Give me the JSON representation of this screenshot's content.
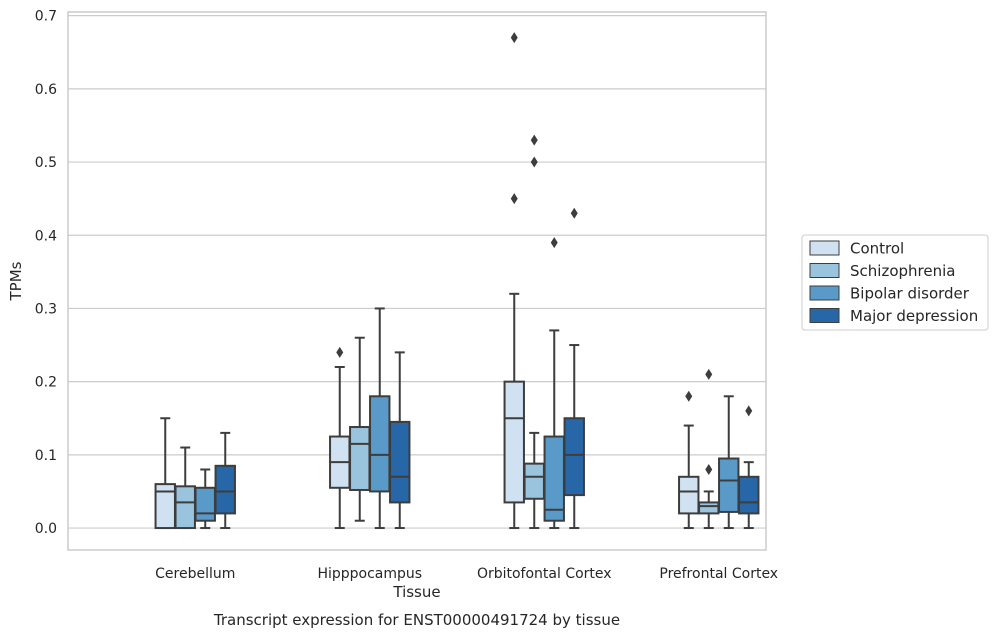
{
  "chart_data": {
    "type": "box",
    "title": "Transcript expression for ENST00000491724 by tissue",
    "xlabel": "Tissue",
    "ylabel": "TPMs",
    "ylim": [
      -0.03,
      0.705
    ],
    "yticks": [
      "0.0",
      "0.1",
      "0.2",
      "0.3",
      "0.4",
      "0.5",
      "0.6",
      "0.7"
    ],
    "categories": [
      "Cerebellum",
      "Hipppocampus",
      "Orbitofontal Cortex",
      "Prefrontal Cortex"
    ],
    "grid": "horizontal",
    "legend_position": "right",
    "series": [
      {
        "name": "Control",
        "color": "#d0e1f2",
        "boxes": [
          {
            "whisker_low": 0.0,
            "q1": 0.0,
            "median": 0.05,
            "q3": 0.06,
            "whisker_high": 0.15,
            "outliers": []
          },
          {
            "whisker_low": 0.0,
            "q1": 0.055,
            "median": 0.09,
            "q3": 0.125,
            "whisker_high": 0.22,
            "outliers": [
              0.24
            ]
          },
          {
            "whisker_low": 0.0,
            "q1": 0.035,
            "median": 0.15,
            "q3": 0.2,
            "whisker_high": 0.32,
            "outliers": [
              0.67,
              0.45
            ]
          },
          {
            "whisker_low": 0.0,
            "q1": 0.02,
            "median": 0.05,
            "q3": 0.07,
            "whisker_high": 0.14,
            "outliers": [
              0.18
            ]
          }
        ]
      },
      {
        "name": "Schizophrenia",
        "color": "#9ac3dd",
        "boxes": [
          {
            "whisker_low": 0.0,
            "q1": 0.0,
            "median": 0.035,
            "q3": 0.057,
            "whisker_high": 0.11,
            "outliers": []
          },
          {
            "whisker_low": 0.01,
            "q1": 0.052,
            "median": 0.115,
            "q3": 0.138,
            "whisker_high": 0.26,
            "outliers": []
          },
          {
            "whisker_low": 0.0,
            "q1": 0.04,
            "median": 0.07,
            "q3": 0.088,
            "whisker_high": 0.13,
            "outliers": [
              0.53,
              0.5
            ]
          },
          {
            "whisker_low": 0.0,
            "q1": 0.02,
            "median": 0.03,
            "q3": 0.035,
            "whisker_high": 0.05,
            "outliers": [
              0.08,
              0.21
            ]
          }
        ]
      },
      {
        "name": "Bipolar disorder",
        "color": "#5a9ac8",
        "boxes": [
          {
            "whisker_low": 0.0,
            "q1": 0.01,
            "median": 0.02,
            "q3": 0.055,
            "whisker_high": 0.08,
            "outliers": []
          },
          {
            "whisker_low": 0.0,
            "q1": 0.05,
            "median": 0.1,
            "q3": 0.18,
            "whisker_high": 0.3,
            "outliers": []
          },
          {
            "whisker_low": 0.0,
            "q1": 0.01,
            "median": 0.025,
            "q3": 0.125,
            "whisker_high": 0.27,
            "outliers": [
              0.39
            ]
          },
          {
            "whisker_low": 0.0,
            "q1": 0.022,
            "median": 0.065,
            "q3": 0.095,
            "whisker_high": 0.18,
            "outliers": []
          }
        ]
      },
      {
        "name": "Major depression",
        "color": "#2767a8",
        "boxes": [
          {
            "whisker_low": 0.0,
            "q1": 0.02,
            "median": 0.05,
            "q3": 0.085,
            "whisker_high": 0.13,
            "outliers": []
          },
          {
            "whisker_low": 0.0,
            "q1": 0.035,
            "median": 0.07,
            "q3": 0.145,
            "whisker_high": 0.24,
            "outliers": []
          },
          {
            "whisker_low": 0.0,
            "q1": 0.045,
            "median": 0.1,
            "q3": 0.15,
            "whisker_high": 0.25,
            "outliers": [
              0.43
            ]
          },
          {
            "whisker_low": 0.0,
            "q1": 0.02,
            "median": 0.035,
            "q3": 0.07,
            "whisker_high": 0.09,
            "outliers": [
              0.16
            ]
          }
        ]
      }
    ]
  }
}
